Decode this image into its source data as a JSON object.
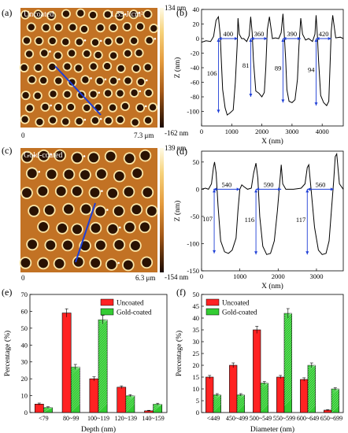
{
  "colors": {
    "uncoated": "#ff2222",
    "gold_coated": "#33cc33",
    "arrow": "#1f3fd6",
    "afm_colormap": [
      "#3b1d05",
      "#7a3a0c",
      "#b8651c",
      "#e49a3c",
      "#f6d27a",
      "#fffbe6"
    ]
  },
  "panels": {
    "a": {
      "tag": "(a)",
      "label": "Uncoated",
      "fluence": "1.39 J/cm²",
      "scale_start": "0",
      "scale_end": "7.3 μm",
      "colorbar_max": "134 nm",
      "colorbar_min": "-162 nm"
    },
    "c": {
      "tag": "(c)",
      "label": "Gold-coated",
      "scale_start": "0",
      "scale_end": "6.3 μm",
      "colorbar_max": "139 nm",
      "colorbar_min": "-154 nm"
    },
    "b": {
      "tag": "(b)"
    },
    "d": {
      "tag": "(d)"
    },
    "e": {
      "tag": "(e)"
    },
    "f": {
      "tag": "(f)"
    }
  },
  "chart_data": [
    {
      "panel": "b",
      "type": "line",
      "xlabel": "X (nm)",
      "ylabel": "Z (nm)",
      "xlim": [
        0,
        4700
      ],
      "ylim": [
        -120,
        40
      ],
      "xticks": [
        0,
        1000,
        2000,
        3000,
        4000
      ],
      "yticks": [
        -100,
        -80,
        -60,
        -40,
        -20,
        0,
        20,
        40
      ],
      "x": [
        0,
        150,
        300,
        400,
        480,
        560,
        620,
        650,
        700,
        780,
        850,
        950,
        1050,
        1120,
        1180,
        1210,
        1250,
        1330,
        1400,
        1500,
        1580,
        1630,
        1680,
        1720,
        1800,
        1900,
        2000,
        2080,
        2130,
        2180,
        2250,
        2350,
        2450,
        2560,
        2640,
        2700,
        2740,
        2790,
        2830,
        2900,
        3000,
        3100,
        3180,
        3230,
        3290,
        3350,
        3450,
        3550,
        3680,
        3760,
        3800,
        3840,
        3880,
        3950,
        4050,
        4150,
        4220,
        4260,
        4300,
        4350,
        4450,
        4600,
        4700
      ],
      "y": [
        -5,
        -3,
        -4,
        3,
        25,
        30,
        5,
        -25,
        -70,
        -95,
        -105,
        -102,
        -98,
        -60,
        -10,
        28,
        6,
        0,
        0,
        -4,
        4,
        30,
        8,
        -30,
        -72,
        -75,
        -80,
        -74,
        -40,
        12,
        30,
        0,
        1,
        0,
        8,
        34,
        8,
        -30,
        -70,
        -86,
        -88,
        -84,
        -56,
        -10,
        28,
        6,
        -2,
        0,
        -4,
        6,
        32,
        4,
        -30,
        -78,
        -88,
        -92,
        -86,
        -40,
        10,
        32,
        1,
        2,
        0
      ],
      "annotations": [
        {
          "text": "400",
          "kind": "width"
        },
        {
          "text": "360",
          "kind": "width"
        },
        {
          "text": "390",
          "kind": "width"
        },
        {
          "text": "420",
          "kind": "width"
        },
        {
          "text": "106",
          "kind": "depth"
        },
        {
          "text": "81",
          "kind": "depth"
        },
        {
          "text": "89",
          "kind": "depth"
        },
        {
          "text": "94",
          "kind": "depth"
        }
      ]
    },
    {
      "panel": "d",
      "type": "line",
      "xlabel": "X (nm)",
      "ylabel": "Z (nm)",
      "xlim": [
        0,
        3700
      ],
      "ylim": [
        -150,
        70
      ],
      "xticks": [
        0,
        1000,
        2000,
        3000
      ],
      "yticks": [
        -150,
        -100,
        -50,
        0,
        50
      ],
      "x": [
        0,
        100,
        180,
        260,
        310,
        340,
        380,
        430,
        500,
        600,
        700,
        800,
        900,
        950,
        1000,
        1050,
        1100,
        1200,
        1300,
        1360,
        1420,
        1470,
        1520,
        1600,
        1700,
        1800,
        1900,
        1980,
        2040,
        2080,
        2120,
        2200,
        2400,
        2600,
        2700,
        2760,
        2800,
        2860,
        2950,
        3050,
        3150,
        3250,
        3330,
        3400,
        3450,
        3490,
        3530,
        3600,
        3700
      ],
      "y": [
        0,
        2,
        0,
        10,
        40,
        50,
        30,
        -30,
        -95,
        -115,
        -118,
        -112,
        -90,
        -40,
        0,
        8,
        5,
        0,
        2,
        30,
        48,
        20,
        -50,
        -105,
        -120,
        -118,
        -95,
        -40,
        10,
        45,
        10,
        0,
        0,
        2,
        10,
        40,
        45,
        0,
        -70,
        -112,
        -120,
        -118,
        -95,
        -30,
        15,
        60,
        65,
        10,
        0
      ],
      "annotations": [
        {
          "text": "540",
          "kind": "width"
        },
        {
          "text": "590",
          "kind": "width"
        },
        {
          "text": "560",
          "kind": "width"
        },
        {
          "text": "107",
          "kind": "depth"
        },
        {
          "text": "116",
          "kind": "depth"
        },
        {
          "text": "117",
          "kind": "depth"
        }
      ]
    },
    {
      "panel": "e",
      "type": "bar",
      "xlabel": "Depth (nm)",
      "ylabel": "Percentage (%)",
      "ylim": [
        0,
        70
      ],
      "yticks": [
        0,
        10,
        20,
        30,
        40,
        50,
        60,
        70
      ],
      "categories": [
        "<79",
        "80~99",
        "100~119",
        "120~139",
        "140~159"
      ],
      "legend_position": "top-right",
      "series": [
        {
          "name": "Uncoated",
          "values": [
            5,
            59,
            20,
            15,
            1
          ],
          "errors": [
            0.6,
            2.5,
            1.2,
            0.8,
            0.3
          ]
        },
        {
          "name": "Gold-coated",
          "values": [
            3,
            27,
            55,
            10,
            5
          ],
          "errors": [
            0.4,
            1.5,
            2.5,
            0.6,
            0.5
          ]
        }
      ]
    },
    {
      "panel": "f",
      "type": "bar",
      "xlabel": "Diameter (nm)",
      "ylabel": "Percentage (%)",
      "ylim": [
        0,
        50
      ],
      "yticks": [
        0,
        5,
        10,
        15,
        20,
        25,
        30,
        35,
        40,
        45,
        50
      ],
      "categories": [
        "<449",
        "450~499",
        "500~549",
        "550~599",
        "600~649",
        "650~699"
      ],
      "legend_position": "top-left",
      "series": [
        {
          "name": "Uncoated",
          "values": [
            15,
            20,
            35,
            15,
            14,
            1
          ],
          "errors": [
            0.7,
            1.0,
            1.5,
            0.7,
            0.7,
            0.2
          ]
        },
        {
          "name": "Gold-coated",
          "values": [
            7.5,
            7.5,
            12.5,
            42,
            20,
            10
          ],
          "errors": [
            0.5,
            0.5,
            0.6,
            2.0,
            1.0,
            0.5
          ]
        }
      ]
    }
  ]
}
